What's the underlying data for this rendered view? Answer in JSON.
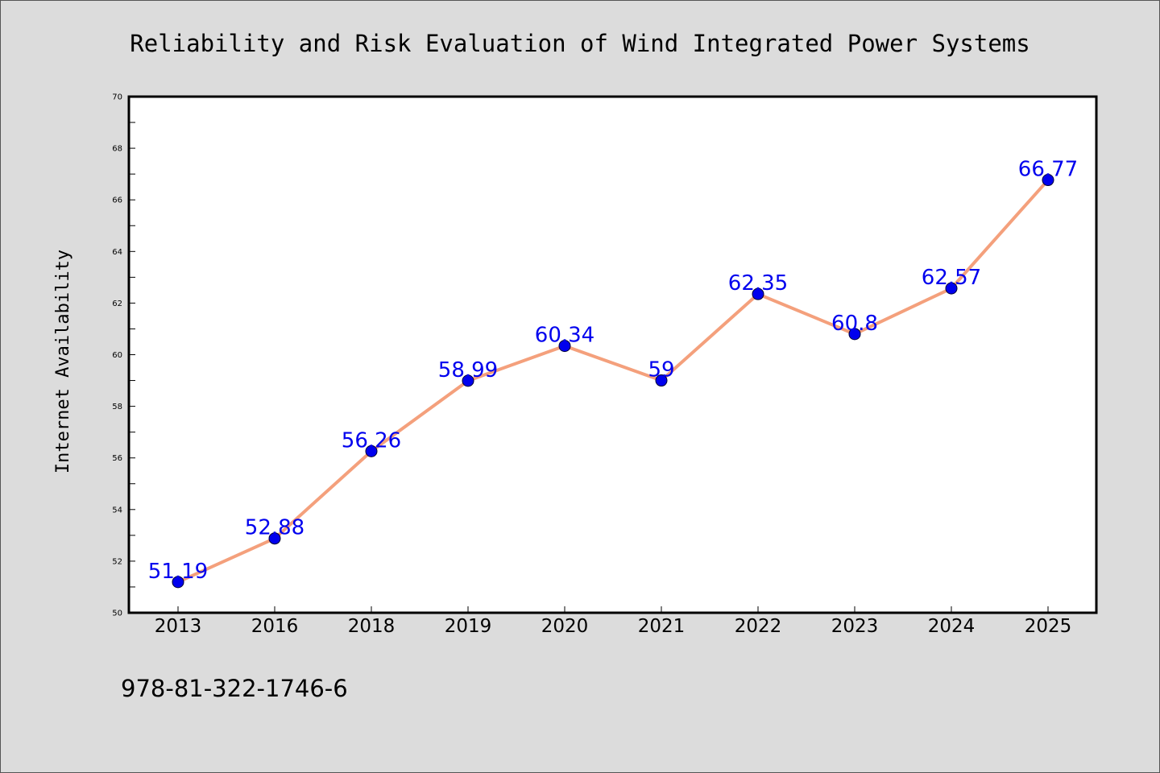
{
  "colors": {
    "background": "#dcdcdc",
    "plot_background": "#ffffff",
    "line": "#f4a07c",
    "marker": "#0000ee",
    "data_label": "#0000ee",
    "axis": "#000000"
  },
  "footer": {
    "text": "978-81-322-1746-6"
  },
  "chart_data": {
    "type": "line",
    "title": "Reliability and Risk Evaluation of Wind Integrated Power Systems",
    "xlabel": "",
    "ylabel": "Internet Availability",
    "categories": [
      "2013",
      "2016",
      "2018",
      "2019",
      "2020",
      "2021",
      "2022",
      "2023",
      "2024",
      "2025"
    ],
    "series": [
      {
        "values": [
          51.19,
          52.88,
          56.26,
          58.99,
          60.34,
          59,
          62.35,
          60.8,
          62.57,
          66.77
        ],
        "labels": [
          "51.19",
          "52.88",
          "56.26",
          "58.99",
          "60.34",
          "59",
          "62.35",
          "60.8",
          "62.57",
          "66.77"
        ]
      }
    ],
    "ylim": [
      50,
      70
    ],
    "yticks": [
      "50",
      "52",
      "54",
      "56",
      "58",
      "60",
      "62",
      "64",
      "66",
      "68",
      "70"
    ],
    "grid": false,
    "legend": "none"
  }
}
